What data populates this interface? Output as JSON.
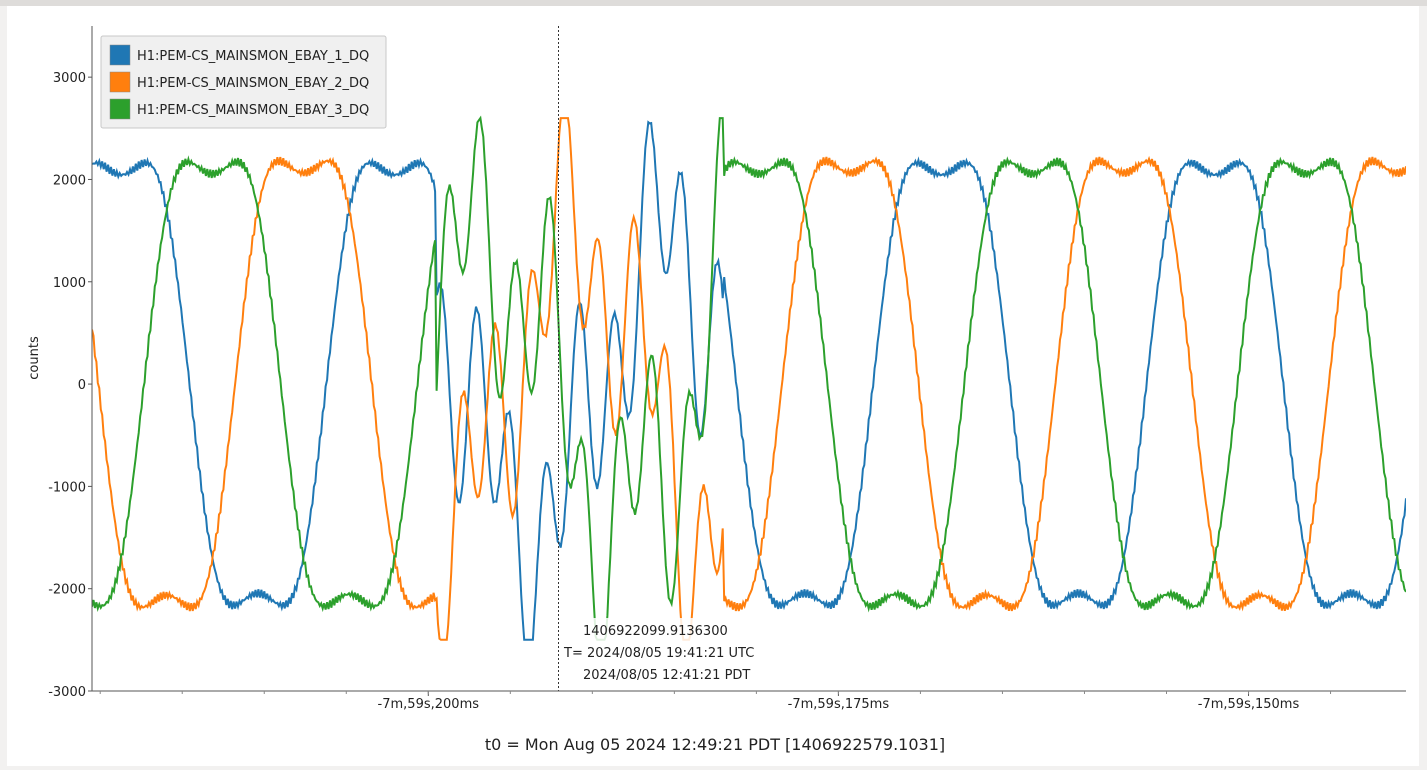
{
  "window": {
    "title": ""
  },
  "chart_data": {
    "type": "line",
    "ylabel": "counts",
    "xlabel": "t0 = Mon Aug 05 2024 12:49:21 PDT [1406922579.1031]",
    "ylim": [
      -3000,
      3500
    ],
    "xlim_ms": [
      -479220.5,
      -479140.4
    ],
    "y_ticks": [
      3000,
      2000,
      1000,
      0,
      -1000,
      -2000,
      -3000
    ],
    "x_ticks": [
      {
        "ms": -479200,
        "label": "-7m,59s,200ms"
      },
      {
        "ms": -479175,
        "label": "-7m,59s,175ms"
      },
      {
        "ms": -479150,
        "label": "-7m,59s,150ms"
      }
    ],
    "grid": false,
    "legend_position": "top-left",
    "series": [
      {
        "name": "H1:PEM-CS_MAINSMON_EBAY_1_DQ",
        "color": "#1f77b4",
        "phase_deg": 0,
        "amplitude": 2370
      },
      {
        "name": "H1:PEM-CS_MAINSMON_EBAY_2_DQ",
        "color": "#ff7f0e",
        "phase_deg": 240,
        "amplitude": 2390
      },
      {
        "name": "H1:PEM-CS_MAINSMON_EBAY_3_DQ",
        "color": "#2ca02c",
        "phase_deg": 120,
        "amplitude": 2380
      }
    ],
    "period_ms": 16.667,
    "crosshair": {
      "gps": "1406922099.9136300",
      "utc": "T= 2024/08/05 19:41:21 UTC",
      "local": "2024/08/05 12:41:21 PDT"
    }
  }
}
